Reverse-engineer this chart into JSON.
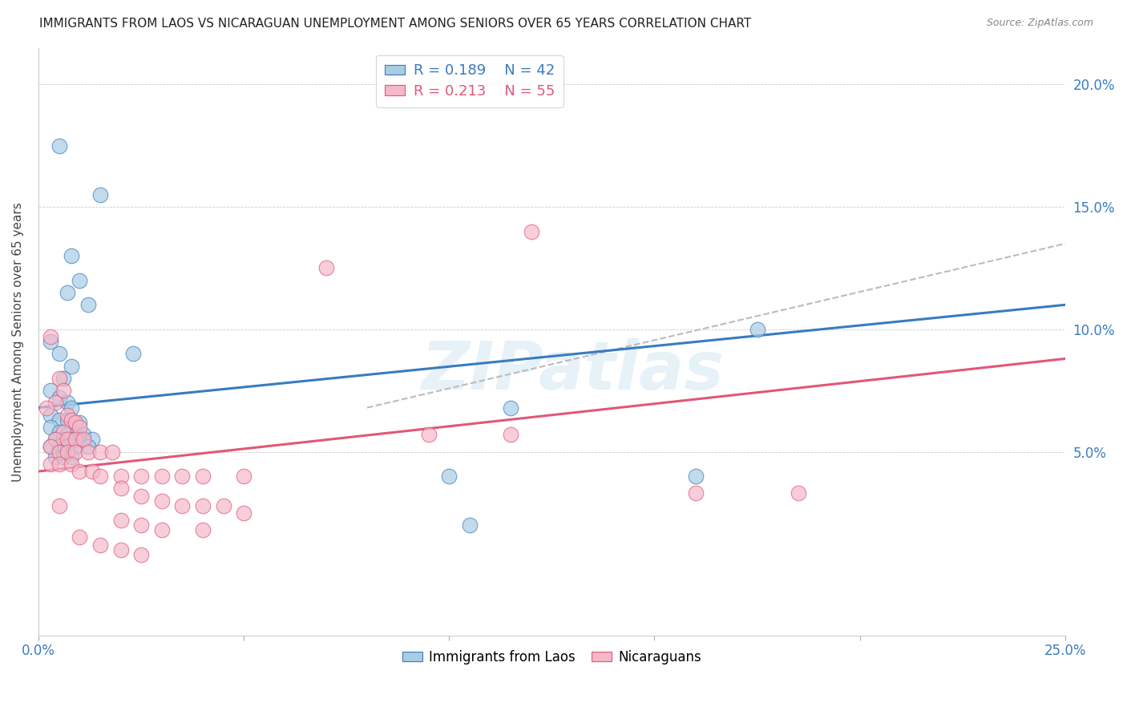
{
  "title": "IMMIGRANTS FROM LAOS VS NICARAGUAN UNEMPLOYMENT AMONG SENIORS OVER 65 YEARS CORRELATION CHART",
  "source": "Source: ZipAtlas.com",
  "ylabel": "Unemployment Among Seniors over 65 years",
  "right_yticks": [
    "20.0%",
    "15.0%",
    "10.0%",
    "5.0%"
  ],
  "right_ytick_vals": [
    0.2,
    0.15,
    0.1,
    0.05
  ],
  "xlim": [
    0.0,
    0.25
  ],
  "ylim": [
    -0.025,
    0.215
  ],
  "legend1_R": "R = 0.189",
  "legend1_N": "N = 42",
  "legend2_R": "R = 0.213",
  "legend2_N": "N = 55",
  "color_blue": "#a8cce4",
  "color_pink": "#f4b8c8",
  "trendline_blue": "#3a7bbf",
  "trendline_pink": "#e05878",
  "trendline_dashed": "#bbbbbb",
  "watermark": "ZIPatlas",
  "legend_loc_blue": "Immigrants from Laos",
  "legend_loc_pink": "Nicaraguans",
  "blue_scatter": [
    [
      0.005,
      0.175
    ],
    [
      0.015,
      0.155
    ],
    [
      0.008,
      0.13
    ],
    [
      0.01,
      0.12
    ],
    [
      0.007,
      0.115
    ],
    [
      0.012,
      0.11
    ],
    [
      0.003,
      0.095
    ],
    [
      0.005,
      0.09
    ],
    [
      0.008,
      0.085
    ],
    [
      0.006,
      0.08
    ],
    [
      0.003,
      0.075
    ],
    [
      0.005,
      0.072
    ],
    [
      0.007,
      0.07
    ],
    [
      0.008,
      0.068
    ],
    [
      0.003,
      0.065
    ],
    [
      0.005,
      0.063
    ],
    [
      0.007,
      0.063
    ],
    [
      0.01,
      0.062
    ],
    [
      0.003,
      0.06
    ],
    [
      0.005,
      0.058
    ],
    [
      0.007,
      0.057
    ],
    [
      0.009,
      0.057
    ],
    [
      0.011,
      0.057
    ],
    [
      0.004,
      0.055
    ],
    [
      0.006,
      0.055
    ],
    [
      0.008,
      0.055
    ],
    [
      0.01,
      0.055
    ],
    [
      0.013,
      0.055
    ],
    [
      0.003,
      0.052
    ],
    [
      0.005,
      0.052
    ],
    [
      0.007,
      0.052
    ],
    [
      0.009,
      0.052
    ],
    [
      0.012,
      0.052
    ],
    [
      0.004,
      0.048
    ],
    [
      0.006,
      0.048
    ],
    [
      0.008,
      0.048
    ],
    [
      0.023,
      0.09
    ],
    [
      0.1,
      0.04
    ],
    [
      0.175,
      0.1
    ],
    [
      0.16,
      0.04
    ],
    [
      0.105,
      0.02
    ],
    [
      0.115,
      0.068
    ]
  ],
  "pink_scatter": [
    [
      0.003,
      0.097
    ],
    [
      0.005,
      0.08
    ],
    [
      0.006,
      0.075
    ],
    [
      0.004,
      0.07
    ],
    [
      0.002,
      0.068
    ],
    [
      0.007,
      0.065
    ],
    [
      0.008,
      0.063
    ],
    [
      0.009,
      0.062
    ],
    [
      0.01,
      0.06
    ],
    [
      0.006,
      0.058
    ],
    [
      0.004,
      0.055
    ],
    [
      0.007,
      0.055
    ],
    [
      0.009,
      0.055
    ],
    [
      0.011,
      0.055
    ],
    [
      0.003,
      0.052
    ],
    [
      0.005,
      0.05
    ],
    [
      0.007,
      0.05
    ],
    [
      0.009,
      0.05
    ],
    [
      0.012,
      0.05
    ],
    [
      0.015,
      0.05
    ],
    [
      0.018,
      0.05
    ],
    [
      0.003,
      0.045
    ],
    [
      0.005,
      0.045
    ],
    [
      0.008,
      0.045
    ],
    [
      0.01,
      0.042
    ],
    [
      0.013,
      0.042
    ],
    [
      0.015,
      0.04
    ],
    [
      0.02,
      0.04
    ],
    [
      0.025,
      0.04
    ],
    [
      0.03,
      0.04
    ],
    [
      0.035,
      0.04
    ],
    [
      0.04,
      0.04
    ],
    [
      0.05,
      0.04
    ],
    [
      0.02,
      0.035
    ],
    [
      0.025,
      0.032
    ],
    [
      0.03,
      0.03
    ],
    [
      0.035,
      0.028
    ],
    [
      0.04,
      0.028
    ],
    [
      0.045,
      0.028
    ],
    [
      0.05,
      0.025
    ],
    [
      0.02,
      0.022
    ],
    [
      0.025,
      0.02
    ],
    [
      0.03,
      0.018
    ],
    [
      0.04,
      0.018
    ],
    [
      0.01,
      0.015
    ],
    [
      0.015,
      0.012
    ],
    [
      0.02,
      0.01
    ],
    [
      0.025,
      0.008
    ],
    [
      0.12,
      0.14
    ],
    [
      0.07,
      0.125
    ],
    [
      0.095,
      0.057
    ],
    [
      0.115,
      0.057
    ],
    [
      0.005,
      0.028
    ],
    [
      0.185,
      0.033
    ],
    [
      0.16,
      0.033
    ]
  ],
  "blue_trend_x": [
    0.0,
    0.25
  ],
  "blue_trend_y": [
    0.068,
    0.11
  ],
  "pink_trend_x": [
    0.0,
    0.25
  ],
  "pink_trend_y": [
    0.042,
    0.088
  ],
  "dashed_trend_x": [
    0.08,
    0.25
  ],
  "dashed_trend_y": [
    0.068,
    0.135
  ]
}
